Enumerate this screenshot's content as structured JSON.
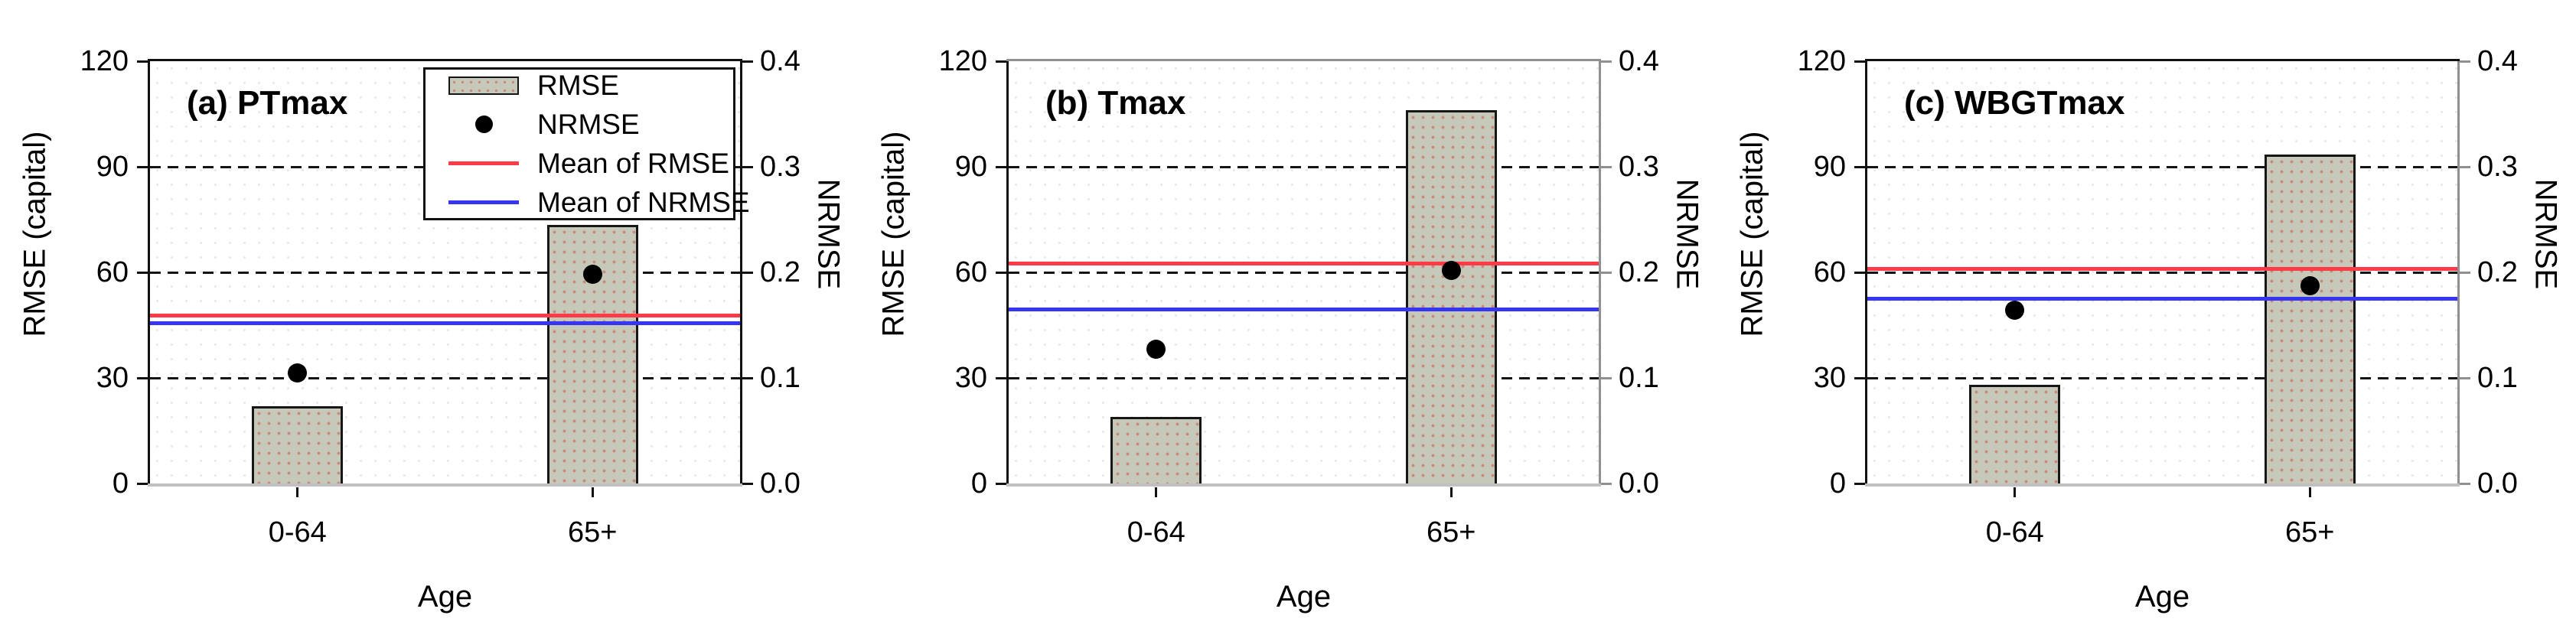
{
  "figure": {
    "xlabel": "Age",
    "categories": [
      "0-64",
      "65+"
    ],
    "left_axis_label": "RMSE (capital)",
    "right_axis_label": "NRMSE",
    "left_ticks": [
      0,
      30,
      60,
      90,
      120
    ],
    "right_ticks": [
      "0.0",
      "0.1",
      "0.2",
      "0.3",
      "0.4"
    ]
  },
  "legend": {
    "items": [
      {
        "label": "RMSE",
        "swatch": "bar"
      },
      {
        "label": "NRMSE",
        "swatch": "dot"
      },
      {
        "label": "Mean of RMSE",
        "swatch": "red-line"
      },
      {
        "label": "Mean of NRMSE",
        "swatch": "blue-line"
      }
    ]
  },
  "colors": {
    "bar_fill": "#c6c8b9",
    "bar_stipple": "#c97568",
    "bar_border": "#161616",
    "mean_rmse_line": "#ff3b47",
    "mean_nrmse_line": "#3636f2",
    "gridline": "#141414",
    "baseline": "#c0c0c0",
    "gray_frame": "#909090",
    "black_frame": "#111111",
    "marker": "#000000"
  },
  "chart_data": [
    {
      "type": "bar",
      "title": "(a) PTmax",
      "categories": [
        "0-64",
        "65+"
      ],
      "xlabel": "Age",
      "left_axis": {
        "label": "RMSE (capital)",
        "lim": [
          0,
          120
        ],
        "ticks": [
          0,
          30,
          60,
          90,
          120
        ]
      },
      "right_axis": {
        "label": "NRMSE",
        "lim": [
          0.0,
          0.4
        ],
        "ticks": [
          0.0,
          0.1,
          0.2,
          0.3,
          0.4
        ]
      },
      "grid": "dashed horizontal at 30, 60, 90",
      "legend_visible": true,
      "legend_position": "top-right-inside",
      "series": [
        {
          "name": "RMSE",
          "type": "bar",
          "axis": "left",
          "values": [
            22,
            73.5
          ]
        },
        {
          "name": "NRMSE",
          "type": "point",
          "axis": "right",
          "values": [
            0.105,
            0.198
          ]
        },
        {
          "name": "Mean of RMSE",
          "type": "hline",
          "axis": "left",
          "value": 47.8
        },
        {
          "name": "Mean of NRMSE",
          "type": "hline",
          "axis": "right",
          "value": 0.152
        }
      ],
      "frame": {
        "top": "#111111",
        "right": "#111111"
      }
    },
    {
      "type": "bar",
      "title": "(b) Tmax",
      "categories": [
        "0-64",
        "65+"
      ],
      "xlabel": "Age",
      "left_axis": {
        "label": "RMSE (capital)",
        "lim": [
          0,
          120
        ],
        "ticks": [
          0,
          30,
          60,
          90,
          120
        ]
      },
      "right_axis": {
        "label": "NRMSE",
        "lim": [
          0.0,
          0.4
        ],
        "ticks": [
          0.0,
          0.1,
          0.2,
          0.3,
          0.4
        ]
      },
      "grid": "dashed horizontal at 30, 60, 90",
      "legend_visible": false,
      "series": [
        {
          "name": "RMSE",
          "type": "bar",
          "axis": "left",
          "values": [
            19,
            106
          ]
        },
        {
          "name": "NRMSE",
          "type": "point",
          "axis": "right",
          "values": [
            0.127,
            0.202
          ]
        },
        {
          "name": "Mean of RMSE",
          "type": "hline",
          "axis": "left",
          "value": 62.5
        },
        {
          "name": "Mean of NRMSE",
          "type": "hline",
          "axis": "right",
          "value": 0.165
        }
      ],
      "frame": {
        "top": "#909090",
        "right": "#909090"
      }
    },
    {
      "type": "bar",
      "title": "(c) WBGTmax",
      "categories": [
        "0-64",
        "65+"
      ],
      "xlabel": "Age",
      "left_axis": {
        "label": "RMSE (capital)",
        "lim": [
          0,
          120
        ],
        "ticks": [
          0,
          30,
          60,
          90,
          120
        ]
      },
      "right_axis": {
        "label": "NRMSE",
        "lim": [
          0.0,
          0.4
        ],
        "ticks": [
          0.0,
          0.1,
          0.2,
          0.3,
          0.4
        ]
      },
      "grid": "dashed horizontal at 30, 60, 90",
      "legend_visible": false,
      "series": [
        {
          "name": "RMSE",
          "type": "bar",
          "axis": "left",
          "values": [
            28,
            93.5
          ]
        },
        {
          "name": "NRMSE",
          "type": "point",
          "axis": "right",
          "values": [
            0.164,
            0.187
          ]
        },
        {
          "name": "Mean of RMSE",
          "type": "hline",
          "axis": "left",
          "value": 61
        },
        {
          "name": "Mean of NRMSE",
          "type": "hline",
          "axis": "right",
          "value": 0.175
        }
      ],
      "frame": {
        "top": "#111111",
        "right": "#909090"
      }
    }
  ]
}
